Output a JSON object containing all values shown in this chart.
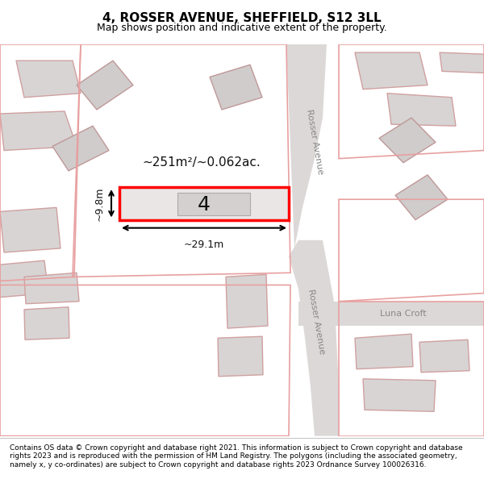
{
  "title": "4, ROSSER AVENUE, SHEFFIELD, S12 3LL",
  "subtitle": "Map shows position and indicative extent of the property.",
  "footer": "Contains OS data © Crown copyright and database right 2021. This information is subject to Crown copyright and database rights 2023 and is reproduced with the permission of HM Land Registry. The polygons (including the associated geometry, namely x, y co-ordinates) are subject to Crown copyright and database rights 2023 Ordnance Survey 100026316.",
  "bg_color": "#f5f5f5",
  "map_bg": "#f0eeee",
  "road_color": "#e8e0e0",
  "road_line_color": "#d0b0b0",
  "building_fill": "#d8d4d4",
  "building_edge": "#b0a8a8",
  "plot_fill": "#e8e4e4",
  "plot_edge": "#ff0000",
  "plot_linewidth": 2.5,
  "road_text_color": "#888888",
  "dim_text_color": "#111111",
  "area_text": "~251m²/~0.062ac.",
  "label_text": "4",
  "dim_width": "~29.1m",
  "dim_height": "~9.8m"
}
